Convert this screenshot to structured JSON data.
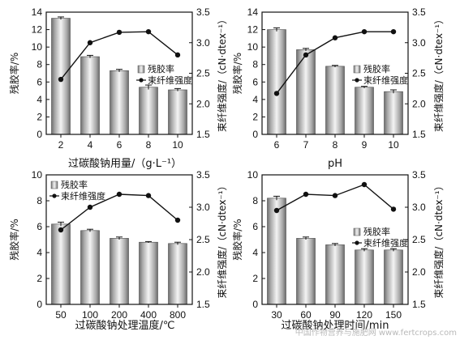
{
  "chart_data": [
    {
      "type": "bar",
      "xlabel": "过碳酸钠用量/（g·L⁻¹）",
      "ylabel_left": "残胶率/%",
      "ylabel_right": "束纤维强度/（cN·dtex⁻¹）",
      "categories": [
        "2",
        "4",
        "6",
        "8",
        "10"
      ],
      "ylim_left": [
        0,
        14
      ],
      "yticks_left": [
        0,
        2,
        4,
        6,
        8,
        10,
        12,
        14
      ],
      "ylim_right": [
        1.5,
        3.5
      ],
      "yticks_right": [
        1.5,
        2.0,
        2.5,
        3.0,
        3.5
      ],
      "legend": [
        "残胶率",
        "束纤维强度"
      ],
      "legend_position": "right-middle",
      "series": [
        {
          "name": "残胶率",
          "axis": "left",
          "kind": "bar",
          "values": [
            13.3,
            8.9,
            7.3,
            5.4,
            5.1
          ],
          "errors": [
            0.15,
            0.15,
            0.15,
            0.25,
            0.15
          ]
        },
        {
          "name": "束纤维强度",
          "axis": "right",
          "kind": "line",
          "values": [
            2.4,
            3.0,
            3.17,
            3.18,
            2.8
          ]
        }
      ]
    },
    {
      "type": "bar",
      "xlabel": "pH",
      "ylabel_left": "残胶率/%",
      "ylabel_right": "束纤维强度/（cN·dtex⁻¹）",
      "categories": [
        "6",
        "7",
        "8",
        "9",
        "10"
      ],
      "ylim_left": [
        0,
        14
      ],
      "yticks_left": [
        0,
        2,
        4,
        6,
        8,
        10,
        12,
        14
      ],
      "ylim_right": [
        1.5,
        3.5
      ],
      "yticks_right": [
        1.5,
        2.0,
        2.5,
        3.0,
        3.5
      ],
      "legend": [
        "残胶率",
        "束纤维强度"
      ],
      "legend_position": "right-middle",
      "series": [
        {
          "name": "残胶率",
          "axis": "left",
          "kind": "bar",
          "values": [
            12.0,
            9.7,
            7.8,
            5.4,
            4.9
          ],
          "errors": [
            0.2,
            0.15,
            0.1,
            0.1,
            0.2
          ]
        },
        {
          "name": "束纤维强度",
          "axis": "right",
          "kind": "line",
          "values": [
            2.17,
            2.8,
            3.08,
            3.18,
            3.18
          ]
        }
      ]
    },
    {
      "type": "bar",
      "xlabel": "过碳酸钠处理温度/℃",
      "ylabel_left": "残胶率/%",
      "ylabel_right": "束纤维强度/（cN·dtex⁻¹）",
      "categories": [
        "50",
        "100",
        "200",
        "400",
        "800"
      ],
      "ylim_left": [
        0,
        10
      ],
      "yticks_left": [
        0,
        2,
        4,
        6,
        8,
        10
      ],
      "ylim_right": [
        1.5,
        3.5
      ],
      "yticks_right": [
        1.5,
        2.0,
        2.5,
        3.0,
        3.5
      ],
      "legend": [
        "残胶率",
        "束纤维强度"
      ],
      "legend_position": "top-left",
      "series": [
        {
          "name": "残胶率",
          "axis": "left",
          "kind": "bar",
          "values": [
            6.2,
            5.7,
            5.1,
            4.8,
            4.7
          ],
          "errors": [
            0.15,
            0.1,
            0.1,
            0.05,
            0.1
          ]
        },
        {
          "name": "束纤维强度",
          "axis": "right",
          "kind": "line",
          "values": [
            2.65,
            3.0,
            3.2,
            3.18,
            2.8
          ]
        }
      ]
    },
    {
      "type": "bar",
      "xlabel": "过碳酸钠处理时间/min",
      "ylabel_left": "残胶率/%",
      "ylabel_right": "束纤维强度/（cN·dtex⁻¹）",
      "categories": [
        "30",
        "60",
        "90",
        "120",
        "150"
      ],
      "ylim_left": [
        0,
        10
      ],
      "yticks_left": [
        0,
        2,
        4,
        6,
        8,
        10
      ],
      "ylim_right": [
        1.5,
        3.5
      ],
      "yticks_right": [
        1.5,
        2.0,
        2.5,
        3.0,
        3.5
      ],
      "legend": [
        "残胶率",
        "束纤维强度"
      ],
      "legend_position": "right-middle",
      "series": [
        {
          "name": "残胶率",
          "axis": "left",
          "kind": "bar",
          "values": [
            8.2,
            5.1,
            4.6,
            4.2,
            4.2
          ],
          "errors": [
            0.15,
            0.1,
            0.1,
            0.1,
            0.1
          ]
        },
        {
          "name": "束纤维强度",
          "axis": "right",
          "kind": "line",
          "values": [
            2.95,
            3.2,
            3.18,
            3.35,
            2.97
          ]
        }
      ]
    }
  ],
  "watermark": "中国作物营养与施肥网 www.fertcrops.com"
}
